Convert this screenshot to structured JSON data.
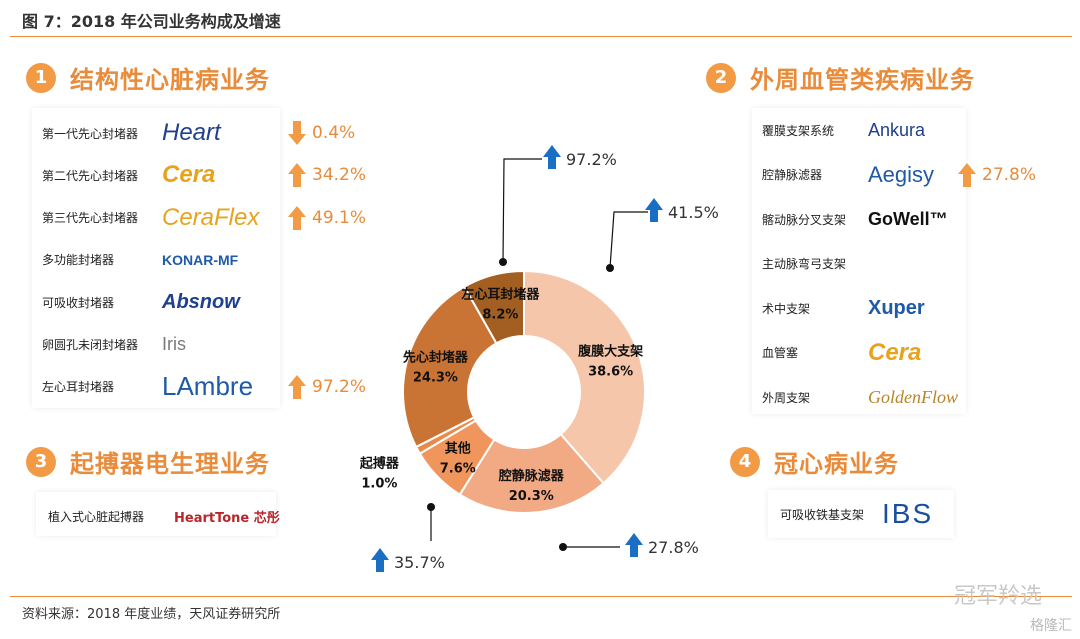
{
  "figure_title": "图 7：2018 年公司业务构成及增速",
  "source_note": "资料来源：2018 年度业绩，天风证券研究所",
  "watermark": "冠军羚选",
  "watermark2": "格隆汇",
  "colors": {
    "accent": "#e88b3a",
    "arrow_up": "#f39a45",
    "arrow_blue": "#1a6fc4"
  },
  "sections": {
    "s1": {
      "num": "1",
      "title": "结构性心脏病业务"
    },
    "s2": {
      "num": "2",
      "title": "外周血管类疾病业务"
    },
    "s3": {
      "num": "3",
      "title": "起搏器电生理业务"
    },
    "s4": {
      "num": "4",
      "title": "冠心病业务"
    }
  },
  "structural_products": [
    {
      "label": "第一代先心封堵器",
      "logo": "Heart",
      "change": "0.4%",
      "dir": "down"
    },
    {
      "label": "第二代先心封堵器",
      "logo": "Cera",
      "change": "34.2%",
      "dir": "up"
    },
    {
      "label": "第三代先心封堵器",
      "logo": "CeraFlex",
      "change": "49.1%",
      "dir": "up"
    },
    {
      "label": "多功能封堵器",
      "logo": "KONAR-MF",
      "change": "",
      "dir": ""
    },
    {
      "label": "可吸收封堵器",
      "logo": "Absnow",
      "change": "",
      "dir": ""
    },
    {
      "label": "卵圆孔未闭封堵器",
      "logo": "Iris",
      "change": "",
      "dir": ""
    },
    {
      "label": "左心耳封堵器",
      "logo": "LAmbre",
      "change": "97.2%",
      "dir": "up"
    }
  ],
  "peripheral_products": [
    {
      "label": "覆膜支架系统",
      "logo": "Ankura",
      "change": ""
    },
    {
      "label": "腔静脉滤器",
      "logo": "Aegisy",
      "change": "27.8%"
    },
    {
      "label": "髂动脉分叉支架",
      "logo": "GoWell™",
      "change": ""
    },
    {
      "label": "主动脉弯弓支架",
      "logo": "",
      "change": ""
    },
    {
      "label": "术中支架",
      "logo": "Xuper",
      "change": ""
    },
    {
      "label": "血管塞",
      "logo": "Cera",
      "change": ""
    },
    {
      "label": "外周支架",
      "logo": "GoldenFlow",
      "change": ""
    }
  ],
  "pacemaker_products": [
    {
      "label": "植入式心脏起搏器",
      "logo": "HeartTone 芯彤"
    }
  ],
  "coronary_products": [
    {
      "label": "可吸收铁基支架",
      "logo": "IBS"
    }
  ],
  "chart_data": {
    "type": "pie",
    "donut": true,
    "slices": [
      {
        "label": "腹膜大支架",
        "value": 38.6,
        "value_label": "38.6%",
        "color": "#f6c6ab",
        "growth": "41.5%"
      },
      {
        "label": "腔静脉滤器",
        "value": 20.3,
        "value_label": "20.3%",
        "color": "#f2aa85",
        "growth": "27.8%"
      },
      {
        "label": "其他",
        "value": 7.6,
        "value_label": "7.6%",
        "color": "#f0965c",
        "growth": ""
      },
      {
        "label": "起搏器",
        "value": 1.0,
        "value_label": "1.0%",
        "color": "#e98a4d",
        "growth": "35.7%"
      },
      {
        "label": "先心封堵器",
        "value": 24.3,
        "value_label": "24.3%",
        "color": "#c97435",
        "growth": ""
      },
      {
        "label": "左心耳封堵器",
        "value": 8.2,
        "value_label": "8.2%",
        "color": "#a35f22",
        "growth": "97.2%"
      }
    ]
  }
}
